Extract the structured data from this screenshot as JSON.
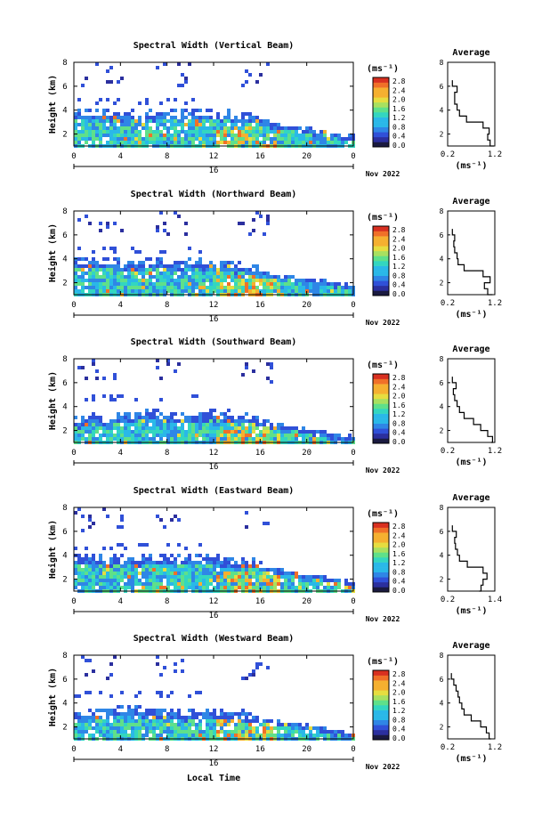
{
  "figure": {
    "date_label": "Nov 2022",
    "xlabel": "Local Time",
    "ylabel": "Height (km)",
    "x_ticks": [
      "0",
      "4",
      "8",
      "12",
      "16",
      "20",
      "0"
    ],
    "day_marker": "16",
    "y_ticks": [
      "2",
      "4",
      "6",
      "8"
    ],
    "colorbar_unit": "(ms⁻¹)",
    "colorbar_ticks": [
      "0.0",
      "0.4",
      "0.8",
      "1.2",
      "1.6",
      "2.0",
      "2.4",
      "2.8"
    ],
    "avg_title": "Average",
    "avg_unit": "(ms⁻¹)",
    "colors": [
      "#1a1a40",
      "#2b2f9e",
      "#3050d8",
      "#2f86e6",
      "#2ab8e8",
      "#33d6c0",
      "#5fe08a",
      "#a8e060",
      "#e6dd40",
      "#f5b030",
      "#f07028",
      "#d83020"
    ]
  },
  "chart_data": [
    {
      "type": "heatmap",
      "title": "Spectral Width (Vertical Beam)",
      "x_range": [
        0,
        24
      ],
      "y_range": [
        1,
        8
      ],
      "colorbar_range": [
        0,
        2.8
      ],
      "profile": {
        "type": "line",
        "title": "Average",
        "x_ticks": [
          "0.2",
          "1.2"
        ],
        "xlim": [
          0.2,
          1.2
        ],
        "height": [
          1,
          1.5,
          2,
          2.5,
          3,
          3.5,
          4,
          4.5,
          5,
          5.5,
          6,
          6.5
        ],
        "width": [
          1.18,
          1.1,
          1.05,
          1.08,
          0.95,
          0.6,
          0.45,
          0.4,
          0.35,
          0.35,
          0.4,
          0.3
        ]
      }
    },
    {
      "type": "heatmap",
      "title": "Spectral Width (Northward Beam)",
      "x_range": [
        0,
        24
      ],
      "y_range": [
        1,
        8
      ],
      "colorbar_range": [
        0,
        2.8
      ],
      "profile": {
        "type": "line",
        "title": "Average",
        "x_ticks": [
          "0.2",
          "1.2"
        ],
        "xlim": [
          0.2,
          1.2
        ],
        "height": [
          1,
          1.5,
          2,
          2.5,
          3,
          3.5,
          4,
          4.5,
          5,
          5.5,
          6,
          6.5
        ],
        "width": [
          1.15,
          1.05,
          0.98,
          1.1,
          0.95,
          0.55,
          0.42,
          0.4,
          0.35,
          0.33,
          0.35,
          0.3
        ]
      }
    },
    {
      "type": "heatmap",
      "title": "Spectral Width (Southward Beam)",
      "x_range": [
        0,
        24
      ],
      "y_range": [
        1,
        8
      ],
      "colorbar_range": [
        0,
        2.8
      ],
      "profile": {
        "type": "line",
        "title": "Average",
        "x_ticks": [
          "0.2",
          "1.2"
        ],
        "xlim": [
          0.2,
          1.2
        ],
        "height": [
          1,
          1.5,
          2,
          2.5,
          3,
          3.5,
          4,
          4.5,
          5,
          5.5,
          6,
          6.5
        ],
        "width": [
          1.12,
          1.15,
          1.05,
          0.9,
          0.75,
          0.55,
          0.45,
          0.4,
          0.35,
          0.32,
          0.38,
          0.3
        ]
      }
    },
    {
      "type": "heatmap",
      "title": "Spectral Width (Eastward Beam)",
      "x_range": [
        0,
        24
      ],
      "y_range": [
        1,
        8
      ],
      "colorbar_range": [
        0,
        2.8
      ],
      "profile": {
        "type": "line",
        "title": "Average",
        "x_ticks": [
          "0.2",
          "1.4"
        ],
        "xlim": [
          0.2,
          1.4
        ],
        "height": [
          1,
          1.5,
          2,
          2.5,
          3,
          3.5,
          4,
          4.5,
          5,
          5.5,
          6,
          6.5
        ],
        "width": [
          1.0,
          1.05,
          1.1,
          1.2,
          1.1,
          0.7,
          0.5,
          0.45,
          0.4,
          0.38,
          0.42,
          0.32
        ]
      }
    },
    {
      "type": "heatmap",
      "title": "Spectral Width (Westward Beam)",
      "x_range": [
        0,
        24
      ],
      "y_range": [
        1,
        8
      ],
      "colorbar_range": [
        0,
        2.8
      ],
      "profile": {
        "type": "line",
        "title": "Average",
        "x_ticks": [
          "0.2",
          "1.2"
        ],
        "xlim": [
          0.2,
          1.2
        ],
        "height": [
          1,
          1.5,
          2,
          2.5,
          3,
          3.5,
          4,
          4.5,
          5,
          5.5,
          6,
          6.5
        ],
        "width": [
          1.12,
          1.08,
          1.02,
          0.9,
          0.7,
          0.55,
          0.5,
          0.45,
          0.42,
          0.38,
          0.33,
          0.28
        ]
      }
    }
  ]
}
